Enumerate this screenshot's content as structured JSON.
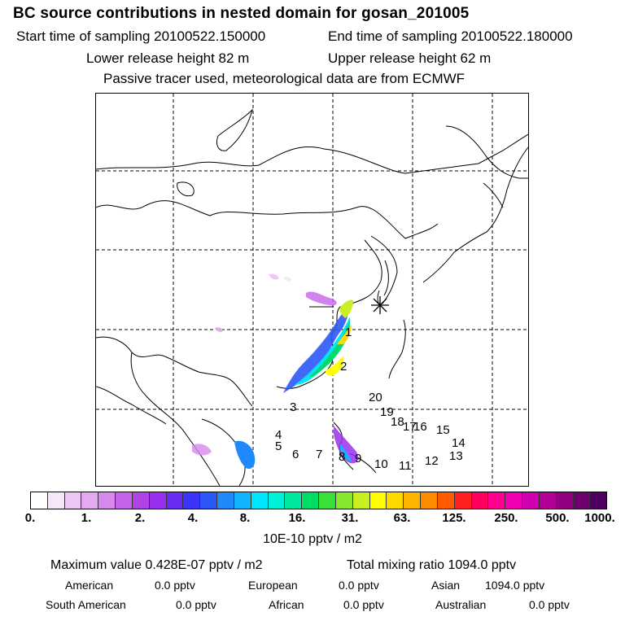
{
  "title": "BC  source contributions in nested domain for gosan_201005",
  "header": {
    "start_label": "Start time of sampling 20100522.150000",
    "end_label": "End time of sampling 20100522.180000",
    "lower_release": "Lower release height   82 m",
    "upper_release": "Upper release height   62 m",
    "tracer_note": "Passive tracer used, meteorological data are from ECMWF"
  },
  "map": {
    "receptor_marker": "asterisk-receptor",
    "source_numbers": [
      "1",
      "2",
      "3",
      "4",
      "5",
      "6",
      "7",
      "8",
      "9",
      "10",
      "11",
      "12",
      "13",
      "14",
      "15",
      "16",
      "17",
      "18",
      "19",
      "20"
    ]
  },
  "colorbar": {
    "colors": [
      "#ffffff",
      "#f6e7fb",
      "#ecc8f6",
      "#e3aaf2",
      "#d68aee",
      "#c763ea",
      "#b043e6",
      "#9b2ff0",
      "#6a2cf2",
      "#3c34f6",
      "#2d58f8",
      "#1f88fa",
      "#12b4fc",
      "#00e6ff",
      "#00f0d8",
      "#00e8a0",
      "#00dc64",
      "#38e038",
      "#88e830",
      "#c8f020",
      "#ffff00",
      "#ffd800",
      "#ffb400",
      "#ff8c00",
      "#ff5a00",
      "#ff2020",
      "#ff0060",
      "#ff0090",
      "#f000b0",
      "#d000b0",
      "#b00098",
      "#900080",
      "#700070",
      "#500060"
    ],
    "ticks": [
      "0.",
      "1.",
      "2.",
      "4.",
      "8.",
      "16.",
      "31.",
      "63.",
      "125.",
      "250.",
      "500.",
      "1000."
    ],
    "unit": "10E-10 pptv / m2"
  },
  "summary": {
    "maximum": "Maximum value  0.428E-07 pptv / m2",
    "total": "Total mixing ratio     1094.0 pptv",
    "american_label": "American",
    "american_value": "0.0 pptv",
    "european_label": "European",
    "european_value": "0.0 pptv",
    "asian_label": "Asian",
    "asian_value": "1094.0 pptv",
    "south_american_label": "South American",
    "south_american_value": "0.0 pptv",
    "african_label": "African",
    "african_value": "0.0 pptv",
    "australian_label": "Australian",
    "australian_value": "0.0 pptv"
  }
}
